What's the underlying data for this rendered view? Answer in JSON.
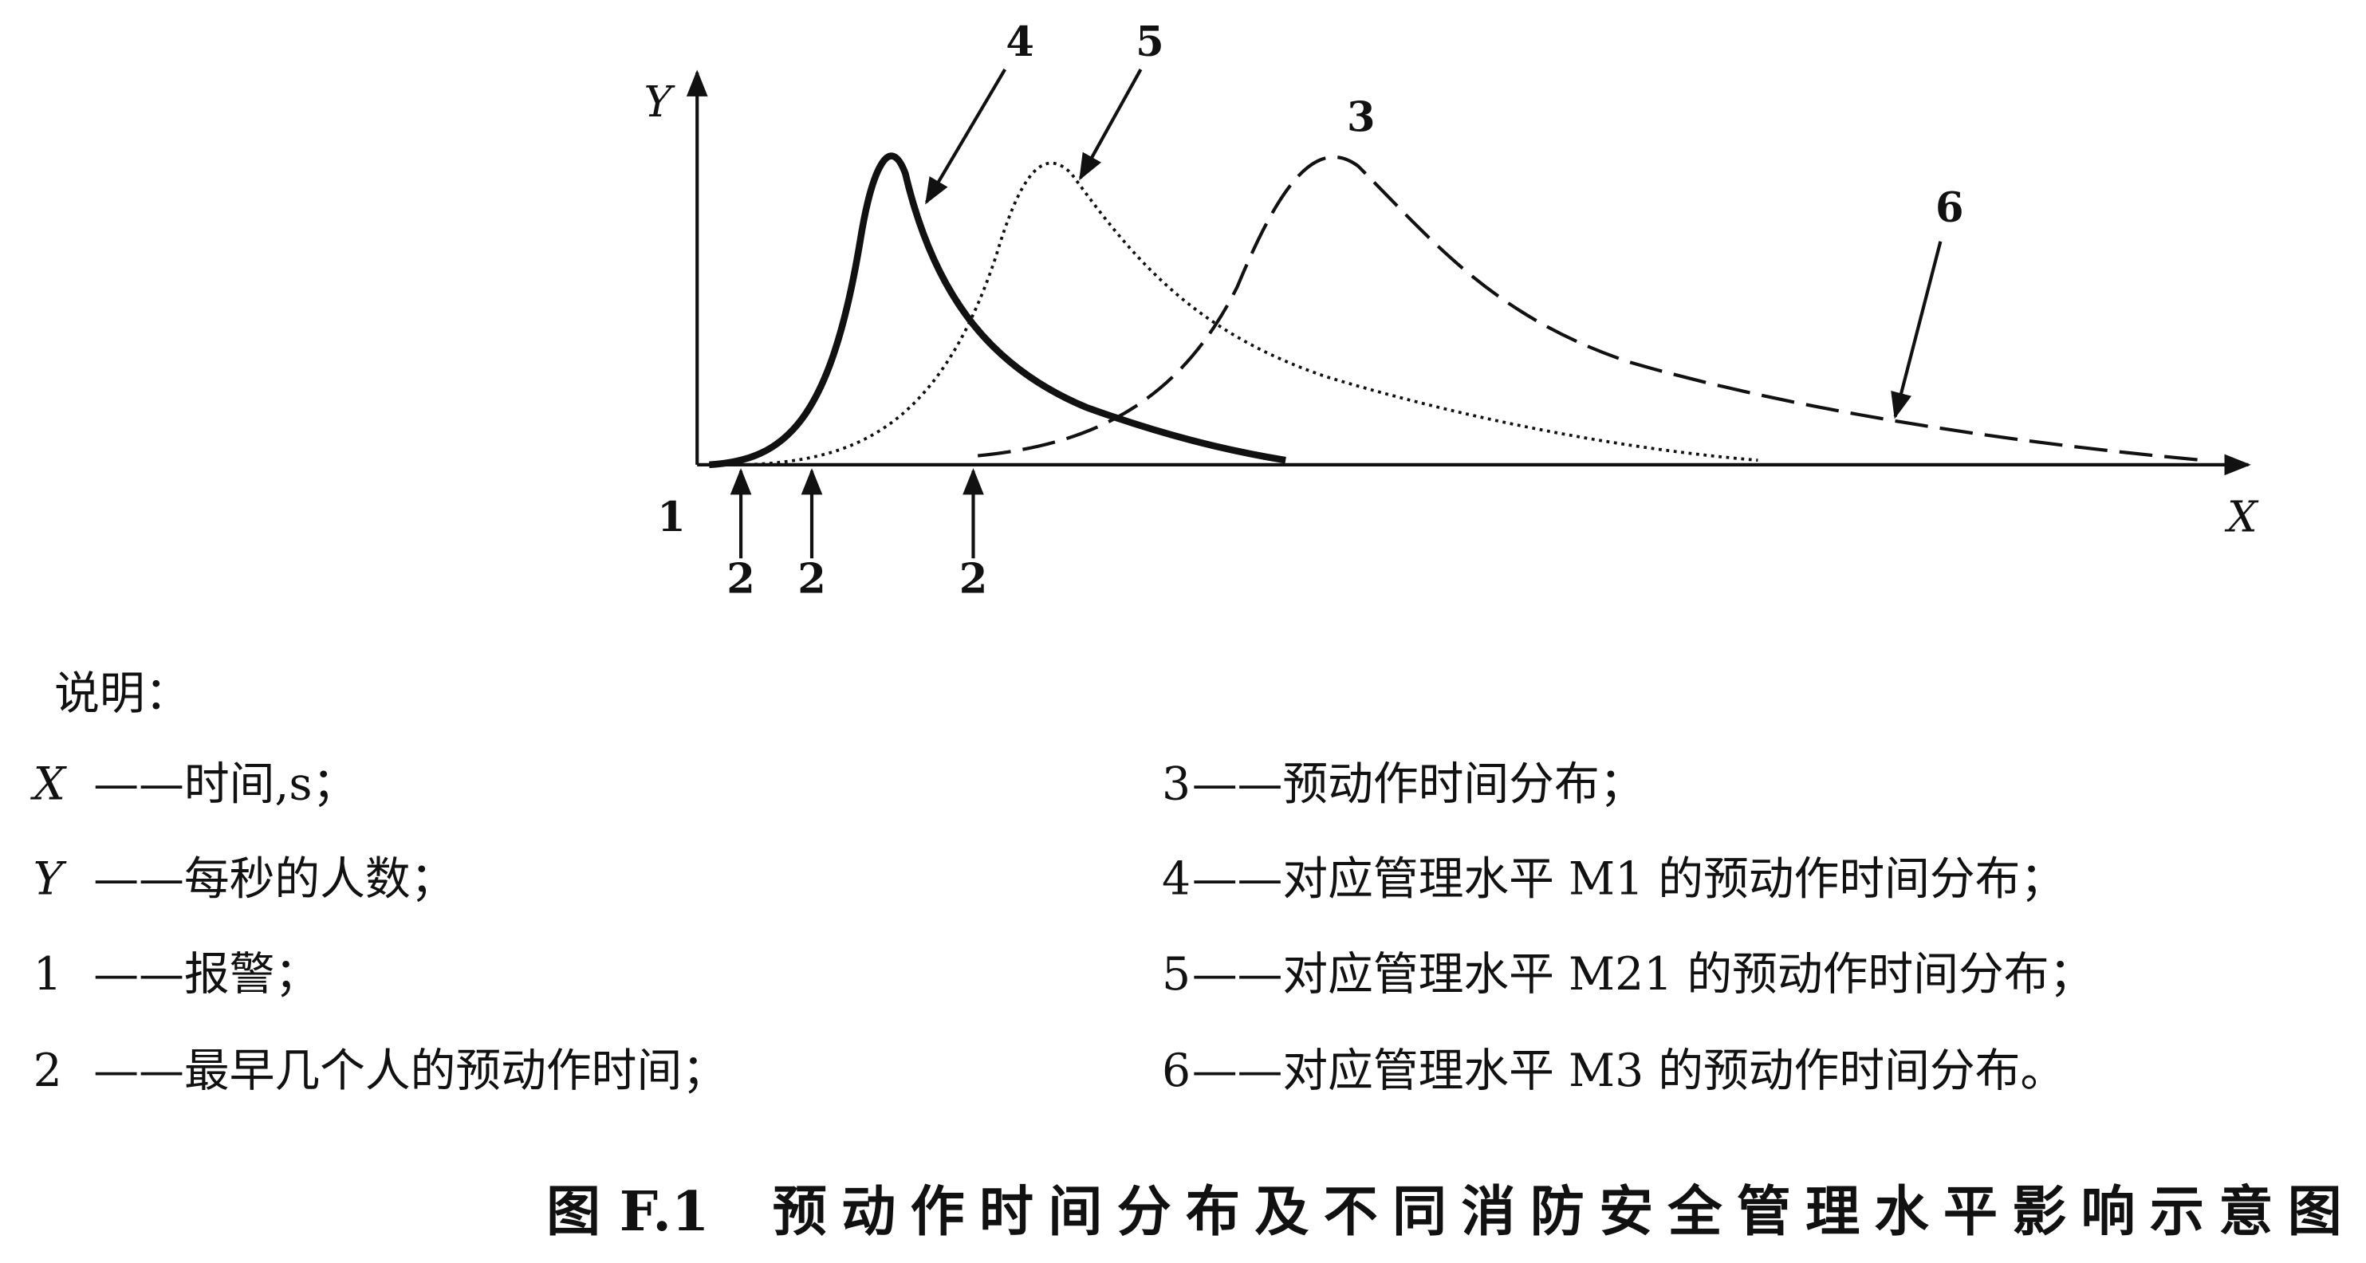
{
  "diagram": {
    "axes": {
      "y_label": "Y",
      "x_label": "X"
    },
    "callouts": {
      "curve_4": "4",
      "curve_5": "5",
      "curve_3": "3",
      "curve_6": "6",
      "alarm": "1",
      "first_a": "2",
      "first_b": "2",
      "first_c": "2"
    },
    "legend": {
      "title": "说明：",
      "left": [
        {
          "key": "X",
          "text": "——时间,s；"
        },
        {
          "key": "Y",
          "text": "——每秒的人数；"
        },
        {
          "key": "1",
          "text": "——报警；"
        },
        {
          "key": "2",
          "text": "——最早几个人的预动作时间；"
        }
      ],
      "right": [
        {
          "key": "3",
          "text": "——预动作时间分布；"
        },
        {
          "key": "4",
          "text": "——对应管理水平 M1 的预动作时间分布；"
        },
        {
          "key": "5",
          "text": "——对应管理水平 M21 的预动作时间分布；"
        },
        {
          "key": "6",
          "text": "——对应管理水平 M3 的预动作时间分布。"
        }
      ]
    },
    "caption": {
      "number": "图 F.1",
      "title": "预动作时间分布及不同消防安全管理水平影响示意图"
    }
  }
}
